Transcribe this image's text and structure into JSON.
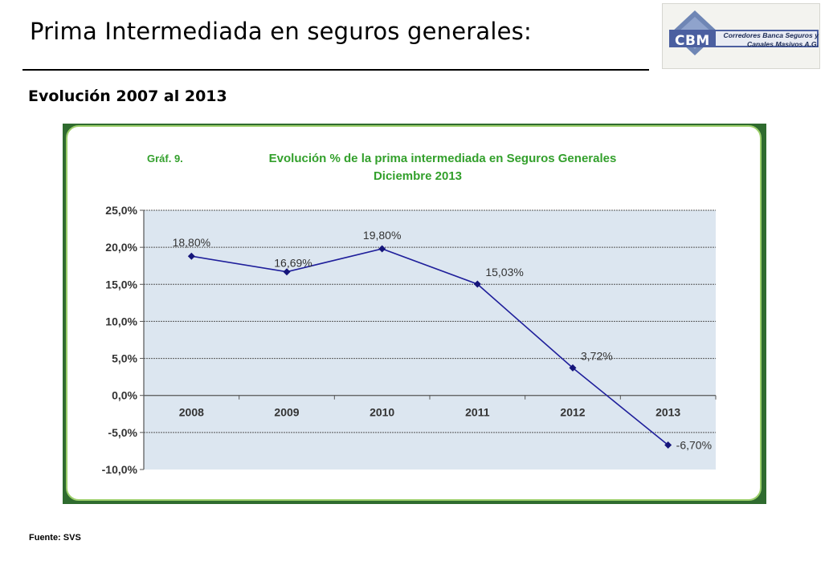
{
  "slide": {
    "title": "Prima Intermediada en seguros generales:",
    "subtitle": "Evolución 2007 al 2013",
    "source": "Fuente: SVS"
  },
  "logo": {
    "abbr": "CBM",
    "name_line1": "Corredores Banca Seguros y",
    "name_line2": "Canales Masivos A.G."
  },
  "colors": {
    "plot_background": "#dce6f0",
    "series_line": "#1f1f9b",
    "chart_title": "#33a02c",
    "label_text": "#333333"
  },
  "chart_data": {
    "type": "line",
    "graph_label": "Gráf. 9.",
    "title": "Evolución % de la prima intermediada en Seguros Generales",
    "subtitle": "Diciembre 2013",
    "categories": [
      "2008",
      "2009",
      "2010",
      "2011",
      "2012",
      "2013"
    ],
    "series": [
      {
        "values": [
          18.8,
          16.69,
          19.8,
          15.03,
          3.72,
          -6.7
        ],
        "data_labels": [
          "18,80%",
          "16,69%",
          "19,80%",
          "15,03%",
          "3,72%",
          "-6,70%"
        ]
      }
    ],
    "y_ticks": [
      25,
      20,
      15,
      10,
      5,
      0,
      -5,
      -10
    ],
    "y_tick_labels": [
      "25,0%",
      "20,0%",
      "15,0%",
      "10,0%",
      "5,0%",
      "0,0%",
      "-5,0%",
      "-10,0%"
    ],
    "ylim": [
      -10,
      25
    ],
    "grid": true,
    "legend": "none",
    "xlabel": "",
    "ylabel": ""
  }
}
